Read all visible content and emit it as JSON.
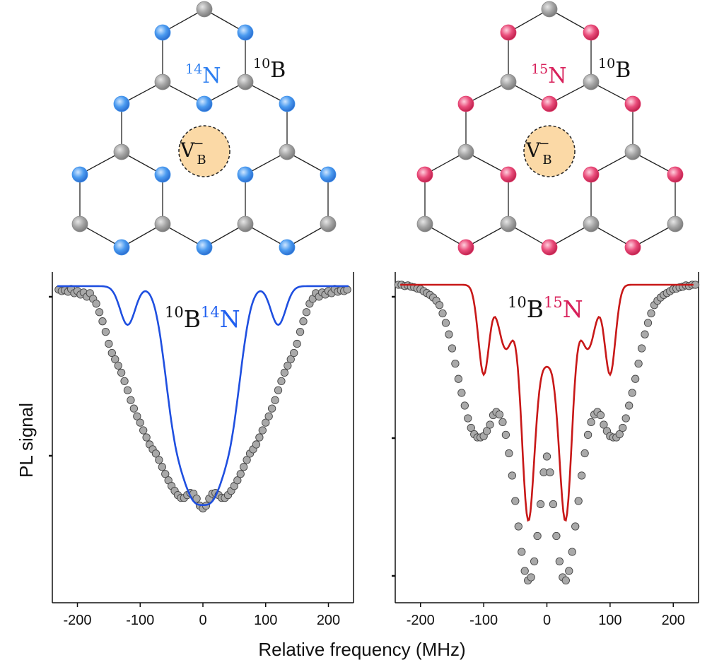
{
  "lattices": [
    {
      "nitrogen_label": {
        "sup": "14",
        "base": "N"
      },
      "boron_label": {
        "sup": "10",
        "base": "B"
      },
      "vacancy_label": {
        "base": "V",
        "sup": "−",
        "sub": "B"
      },
      "nitrogen_color": "#3d8fea",
      "boron_color": "#9c9c9c",
      "vacancy_fill": "#fbd9a6"
    },
    {
      "nitrogen_label": {
        "sup": "15",
        "base": "N"
      },
      "boron_label": {
        "sup": "10",
        "base": "B"
      },
      "vacancy_label": {
        "base": "V",
        "sup": "−",
        "sub": "B"
      },
      "nitrogen_color": "#e23a6b",
      "boron_color": "#9c9c9c",
      "vacancy_fill": "#fbd9a6"
    }
  ],
  "shared_labels": {
    "xlabel": "Relative frequency (MHz)",
    "ylabel": "PL signal"
  },
  "chart_data": [
    {
      "type": "scatter",
      "panel_label": {
        "b_sup": "10",
        "b": "B",
        "n_sup": "14",
        "n": "N"
      },
      "xlim": [
        -240,
        240
      ],
      "ylim": [
        0.55,
        1.02
      ],
      "xticks": [
        -200,
        -100,
        0,
        100,
        200
      ],
      "fit_color": "#1f4fe0",
      "marker_color": "#a9a9a9",
      "fit": {
        "name": "fit",
        "baseline": 1.0,
        "lines": [
          {
            "center": -45,
            "depth": 0.175,
            "width": 40
          },
          {
            "center": -15,
            "depth": 0.222,
            "width": 40
          },
          {
            "center": 15,
            "depth": 0.222,
            "width": 40
          },
          {
            "center": 45,
            "depth": 0.175,
            "width": 40
          },
          {
            "center": -120,
            "depth": 0.055,
            "width": 28
          },
          {
            "center": 120,
            "depth": 0.055,
            "width": 28
          }
        ]
      },
      "points": [
        [
          -230,
          0.995
        ],
        [
          -225,
          0.993
        ],
        [
          -220,
          0.994
        ],
        [
          -215,
          0.992
        ],
        [
          -210,
          0.996
        ],
        [
          -205,
          0.99
        ],
        [
          -200,
          0.993
        ],
        [
          -195,
          0.988
        ],
        [
          -190,
          0.991
        ],
        [
          -185,
          0.985
        ],
        [
          -180,
          0.99
        ],
        [
          -175,
          0.982
        ],
        [
          -170,
          0.975
        ],
        [
          -165,
          0.963
        ],
        [
          -160,
          0.95
        ],
        [
          -155,
          0.935
        ],
        [
          -150,
          0.918
        ],
        [
          -145,
          0.905
        ],
        [
          -140,
          0.896
        ],
        [
          -135,
          0.887
        ],
        [
          -130,
          0.877
        ],
        [
          -125,
          0.865
        ],
        [
          -120,
          0.852
        ],
        [
          -115,
          0.838
        ],
        [
          -110,
          0.826
        ],
        [
          -105,
          0.815
        ],
        [
          -100,
          0.806
        ],
        [
          -95,
          0.795
        ],
        [
          -90,
          0.785
        ],
        [
          -85,
          0.775
        ],
        [
          -80,
          0.768
        ],
        [
          -75,
          0.762
        ],
        [
          -70,
          0.753
        ],
        [
          -65,
          0.743
        ],
        [
          -60,
          0.733
        ],
        [
          -55,
          0.724
        ],
        [
          -50,
          0.716
        ],
        [
          -45,
          0.709
        ],
        [
          -40,
          0.703
        ],
        [
          -35,
          0.699
        ],
        [
          -30,
          0.699
        ],
        [
          -25,
          0.703
        ],
        [
          -20,
          0.706
        ],
        [
          -15,
          0.705
        ],
        [
          -10,
          0.698
        ],
        [
          -5,
          0.688
        ],
        [
          0,
          0.684
        ],
        [
          5,
          0.688
        ],
        [
          10,
          0.698
        ],
        [
          15,
          0.705
        ],
        [
          20,
          0.706
        ],
        [
          25,
          0.703
        ],
        [
          30,
          0.699
        ],
        [
          35,
          0.699
        ],
        [
          40,
          0.703
        ],
        [
          45,
          0.709
        ],
        [
          50,
          0.716
        ],
        [
          55,
          0.724
        ],
        [
          60,
          0.733
        ],
        [
          65,
          0.743
        ],
        [
          70,
          0.753
        ],
        [
          75,
          0.762
        ],
        [
          80,
          0.768
        ],
        [
          85,
          0.775
        ],
        [
          90,
          0.785
        ],
        [
          95,
          0.795
        ],
        [
          100,
          0.806
        ],
        [
          105,
          0.815
        ],
        [
          110,
          0.826
        ],
        [
          115,
          0.838
        ],
        [
          120,
          0.852
        ],
        [
          125,
          0.865
        ],
        [
          130,
          0.877
        ],
        [
          135,
          0.887
        ],
        [
          140,
          0.896
        ],
        [
          145,
          0.905
        ],
        [
          150,
          0.918
        ],
        [
          155,
          0.935
        ],
        [
          160,
          0.95
        ],
        [
          165,
          0.963
        ],
        [
          170,
          0.975
        ],
        [
          175,
          0.982
        ],
        [
          180,
          0.99
        ],
        [
          185,
          0.985
        ],
        [
          190,
          0.991
        ],
        [
          195,
          0.988
        ],
        [
          200,
          0.993
        ],
        [
          205,
          0.99
        ],
        [
          210,
          0.996
        ],
        [
          215,
          0.992
        ],
        [
          220,
          0.994
        ],
        [
          225,
          0.993
        ],
        [
          230,
          0.995
        ]
      ]
    },
    {
      "type": "scatter",
      "panel_label": {
        "b_sup": "10",
        "b": "B",
        "n_sup": "15",
        "n": "N"
      },
      "xlim": [
        -240,
        240
      ],
      "ylim": [
        0.5,
        1.02
      ],
      "xticks": [
        -200,
        -100,
        0,
        100,
        200
      ],
      "fit_color": "#c81818",
      "marker_color": "#a9a9a9",
      "fit": {
        "name": "fit",
        "baseline": 1.0,
        "lines": [
          {
            "center": -100,
            "depth": 0.14,
            "width": 20
          },
          {
            "center": -30,
            "depth": 0.34,
            "width": 24
          },
          {
            "center": 30,
            "depth": 0.34,
            "width": 24
          },
          {
            "center": 100,
            "depth": 0.14,
            "width": 20
          },
          {
            "center": 0,
            "depth": 0.12,
            "width": 42
          },
          {
            "center": -65,
            "depth": 0.1,
            "width": 28
          },
          {
            "center": 65,
            "depth": 0.1,
            "width": 28
          }
        ]
      },
      "points": [
        [
          -235,
          1.0
        ],
        [
          -230,
          1.0
        ],
        [
          -225,
          0.998
        ],
        [
          -220,
          0.999
        ],
        [
          -215,
          0.997
        ],
        [
          -210,
          0.996
        ],
        [
          -205,
          0.994
        ],
        [
          -200,
          0.993
        ],
        [
          -195,
          0.99
        ],
        [
          -190,
          0.987
        ],
        [
          -185,
          0.984
        ],
        [
          -180,
          0.98
        ],
        [
          -175,
          0.975
        ],
        [
          -170,
          0.968
        ],
        [
          -165,
          0.955
        ],
        [
          -160,
          0.94
        ],
        [
          -155,
          0.922
        ],
        [
          -150,
          0.9
        ],
        [
          -145,
          0.876
        ],
        [
          -140,
          0.852
        ],
        [
          -135,
          0.83
        ],
        [
          -130,
          0.81
        ],
        [
          -125,
          0.79
        ],
        [
          -120,
          0.775
        ],
        [
          -115,
          0.765
        ],
        [
          -110,
          0.76
        ],
        [
          -105,
          0.76
        ],
        [
          -100,
          0.762
        ],
        [
          -95,
          0.77
        ],
        [
          -90,
          0.78
        ],
        [
          -85,
          0.795
        ],
        [
          -80,
          0.8
        ],
        [
          -75,
          0.796
        ],
        [
          -70,
          0.784
        ],
        [
          -65,
          0.764
        ],
        [
          -60,
          0.735
        ],
        [
          -55,
          0.7
        ],
        [
          -50,
          0.66
        ],
        [
          -45,
          0.62
        ],
        [
          -40,
          0.58
        ],
        [
          -35,
          0.55
        ],
        [
          -30,
          0.535
        ],
        [
          -25,
          0.54
        ],
        [
          -20,
          0.565
        ],
        [
          -15,
          0.605
        ],
        [
          -10,
          0.655
        ],
        [
          -5,
          0.705
        ],
        [
          0,
          0.73
        ],
        [
          5,
          0.705
        ],
        [
          10,
          0.655
        ],
        [
          15,
          0.605
        ],
        [
          20,
          0.565
        ],
        [
          25,
          0.54
        ],
        [
          30,
          0.535
        ],
        [
          35,
          0.55
        ],
        [
          40,
          0.58
        ],
        [
          45,
          0.62
        ],
        [
          50,
          0.66
        ],
        [
          55,
          0.7
        ],
        [
          60,
          0.735
        ],
        [
          65,
          0.764
        ],
        [
          70,
          0.784
        ],
        [
          75,
          0.796
        ],
        [
          80,
          0.8
        ],
        [
          85,
          0.795
        ],
        [
          90,
          0.78
        ],
        [
          95,
          0.77
        ],
        [
          100,
          0.762
        ],
        [
          105,
          0.76
        ],
        [
          110,
          0.76
        ],
        [
          115,
          0.765
        ],
        [
          120,
          0.775
        ],
        [
          125,
          0.79
        ],
        [
          130,
          0.81
        ],
        [
          135,
          0.83
        ],
        [
          140,
          0.852
        ],
        [
          145,
          0.876
        ],
        [
          150,
          0.9
        ],
        [
          155,
          0.922
        ],
        [
          160,
          0.94
        ],
        [
          165,
          0.955
        ],
        [
          170,
          0.968
        ],
        [
          175,
          0.975
        ],
        [
          180,
          0.98
        ],
        [
          185,
          0.984
        ],
        [
          190,
          0.987
        ],
        [
          195,
          0.99
        ],
        [
          200,
          0.993
        ],
        [
          205,
          0.994
        ],
        [
          210,
          0.996
        ],
        [
          215,
          0.997
        ],
        [
          220,
          0.999
        ],
        [
          225,
          0.998
        ],
        [
          230,
          1.0
        ],
        [
          235,
          1.0
        ]
      ]
    }
  ]
}
